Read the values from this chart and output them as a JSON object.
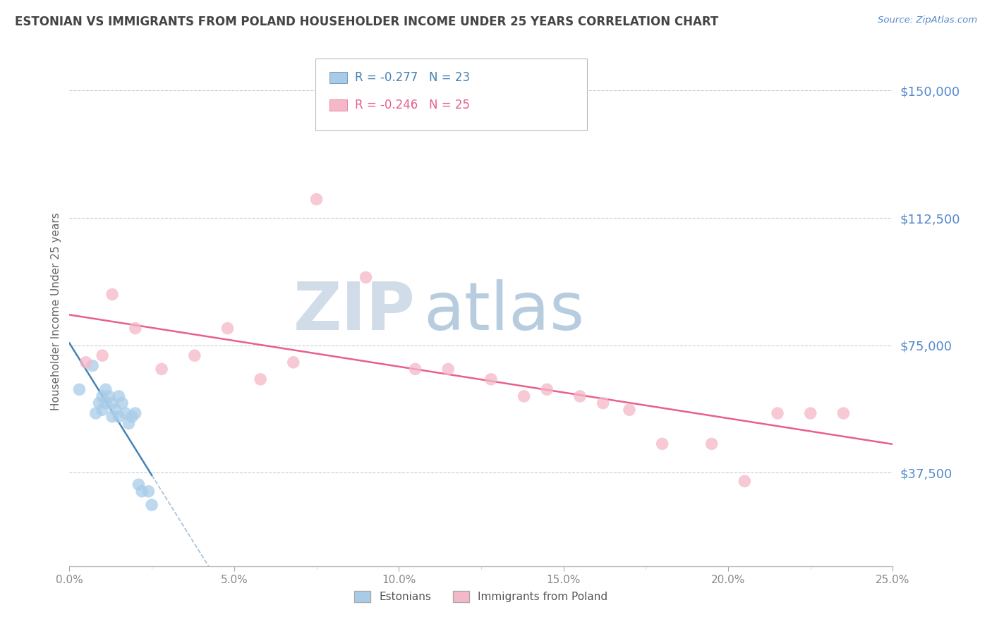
{
  "title": "ESTONIAN VS IMMIGRANTS FROM POLAND HOUSEHOLDER INCOME UNDER 25 YEARS CORRELATION CHART",
  "source": "Source: ZipAtlas.com",
  "ylabel": "Householder Income Under 25 years",
  "xlabel_ticks": [
    "0.0%",
    "5.0%",
    "10.0%",
    "15.0%",
    "20.0%",
    "25.0%"
  ],
  "xlabel_vals": [
    0.0,
    0.05,
    0.1,
    0.15,
    0.2,
    0.25
  ],
  "ytick_labels": [
    "$37,500",
    "$75,000",
    "$112,500",
    "$150,000"
  ],
  "ytick_vals": [
    37500,
    75000,
    112500,
    150000
  ],
  "xmin": 0.0,
  "xmax": 0.25,
  "ymin": 10000,
  "ymax": 160000,
  "r_estonian": -0.277,
  "n_estonian": 23,
  "r_poland": -0.246,
  "n_poland": 25,
  "estonian_color": "#a8cce8",
  "poland_color": "#f4b8c8",
  "trendline_estonian_color": "#4682B4",
  "trendline_poland_color": "#e8608a",
  "watermark_zip_color": "#d0dce8",
  "watermark_atlas_color": "#b8cce0",
  "grid_color": "#cccccc",
  "title_color": "#444444",
  "axis_label_color": "#666666",
  "ytick_color": "#5588cc",
  "xtick_color": "#888888",
  "legend_label1": "R = -0.277   N = 23",
  "legend_label2": "R = -0.246   N = 25",
  "legend_label_estonians": "Estonians",
  "legend_label_poland": "Immigrants from Poland",
  "est_x": [
    0.003,
    0.007,
    0.008,
    0.009,
    0.01,
    0.01,
    0.011,
    0.011,
    0.012,
    0.013,
    0.013,
    0.014,
    0.015,
    0.015,
    0.016,
    0.017,
    0.018,
    0.019,
    0.02,
    0.021,
    0.022,
    0.024,
    0.025
  ],
  "est_y": [
    62000,
    69000,
    55000,
    58000,
    60000,
    56000,
    62000,
    58000,
    60000,
    58000,
    54000,
    56000,
    60000,
    54000,
    58000,
    55000,
    52000,
    54000,
    55000,
    34000,
    32000,
    32000,
    28000
  ],
  "pol_x": [
    0.005,
    0.01,
    0.013,
    0.02,
    0.028,
    0.038,
    0.048,
    0.058,
    0.068,
    0.075,
    0.09,
    0.105,
    0.115,
    0.128,
    0.138,
    0.145,
    0.155,
    0.162,
    0.17,
    0.18,
    0.195,
    0.205,
    0.215,
    0.225,
    0.235
  ],
  "pol_y": [
    70000,
    72000,
    90000,
    80000,
    68000,
    72000,
    80000,
    65000,
    70000,
    118000,
    95000,
    68000,
    68000,
    65000,
    60000,
    62000,
    60000,
    58000,
    56000,
    46000,
    46000,
    35000,
    55000,
    55000,
    55000
  ]
}
